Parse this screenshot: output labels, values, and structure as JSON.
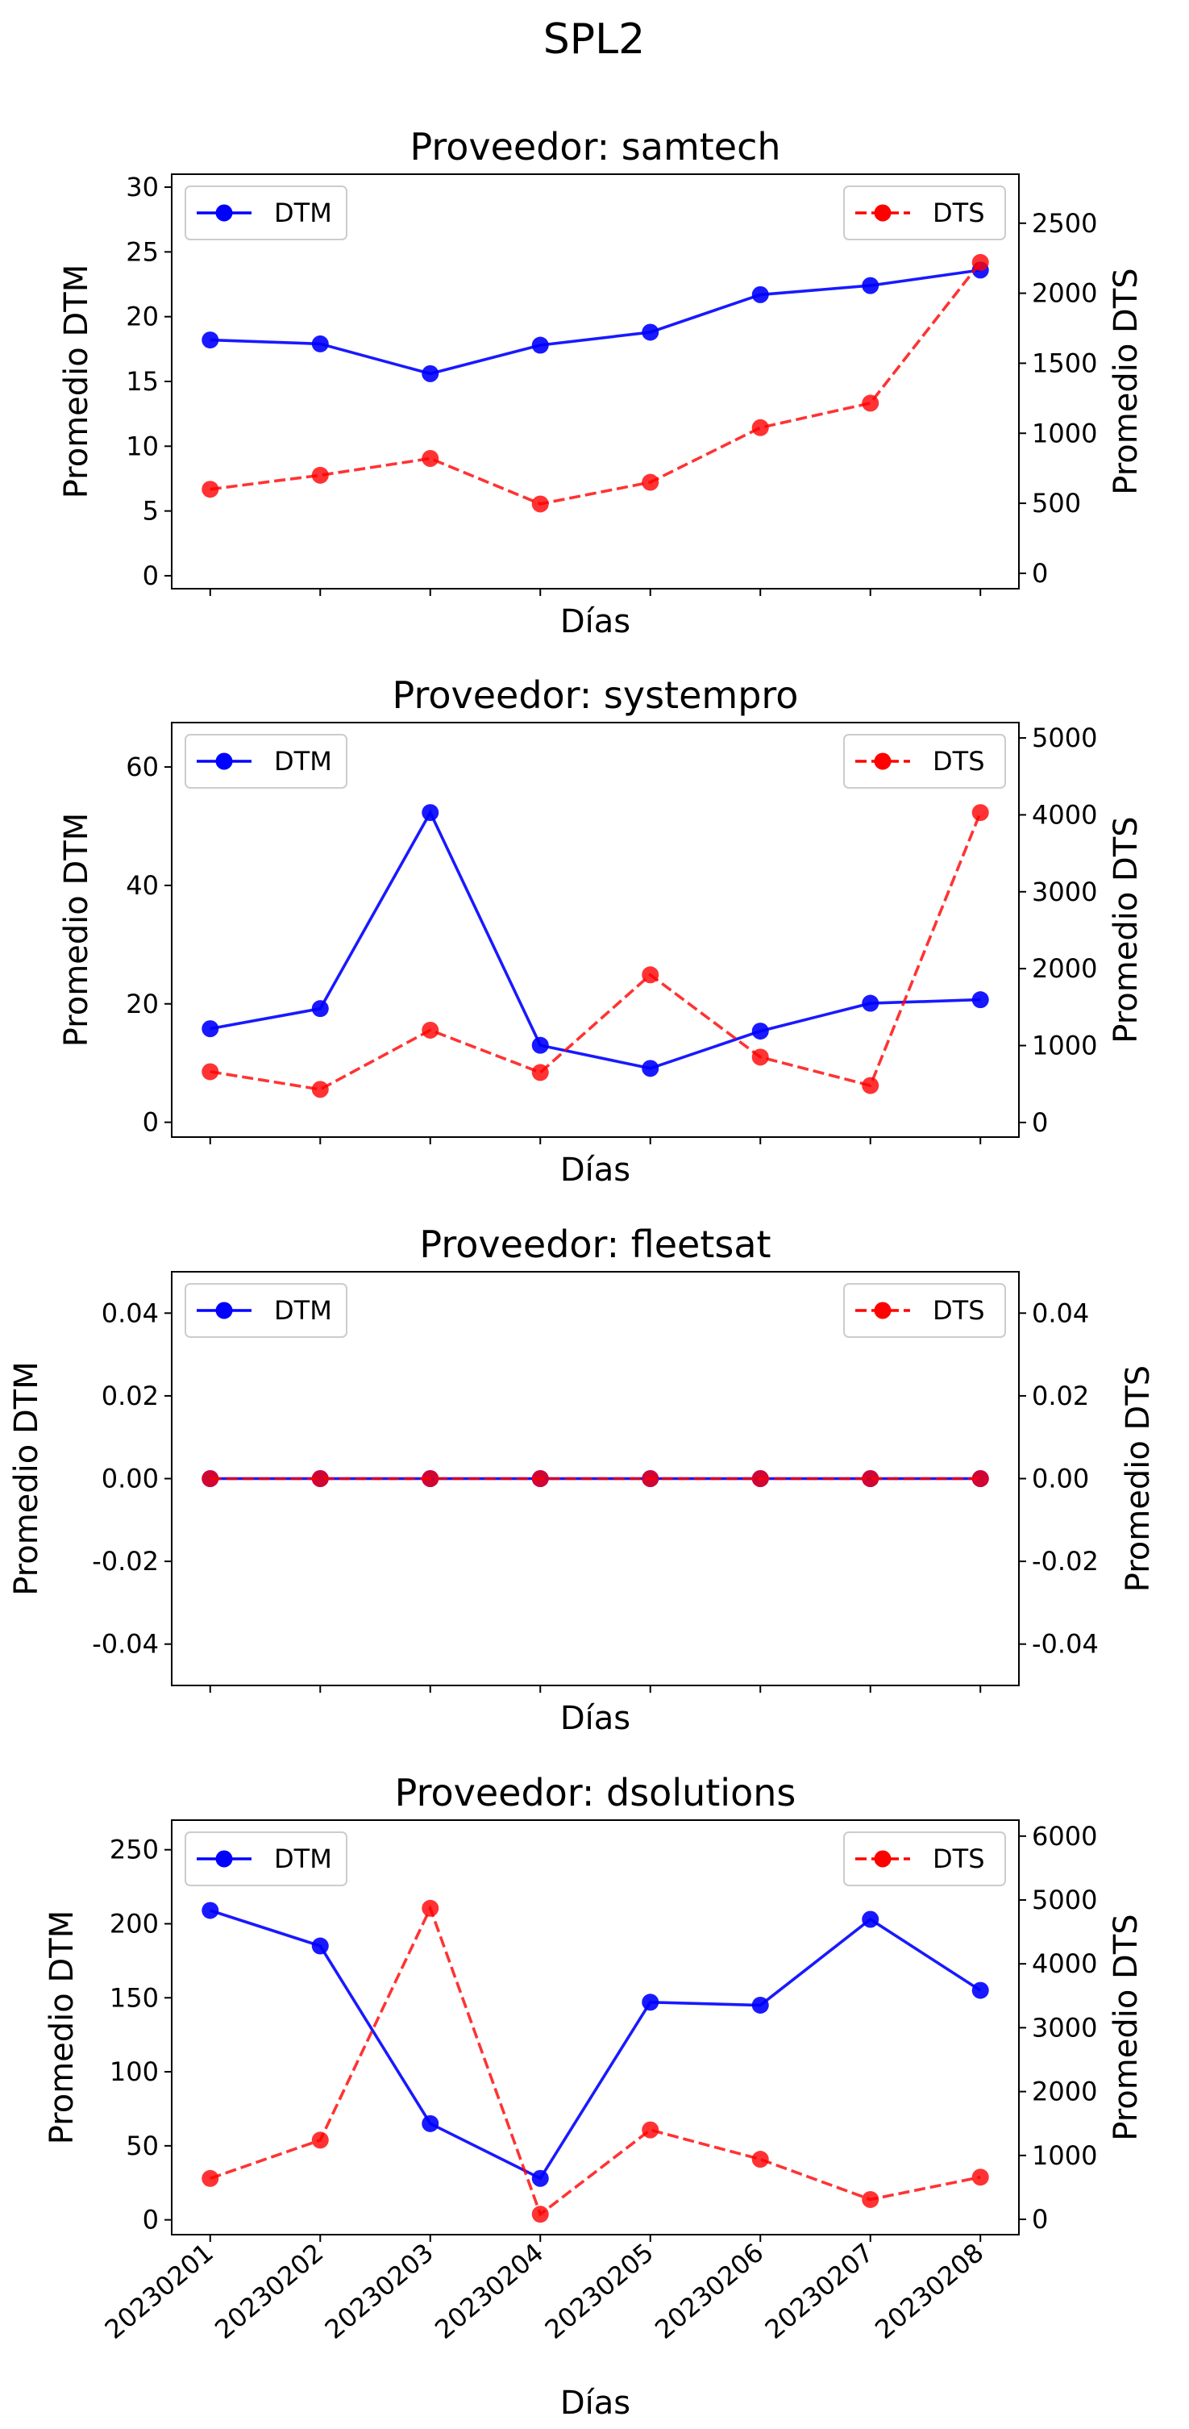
{
  "figure_title": "SPL2",
  "chart_data": [
    {
      "type": "line",
      "title": "Proveedor: samtech",
      "xlabel": "Días",
      "ylabel_left": "Promedio DTM",
      "ylabel_right": "Promedio DTS",
      "categories": [
        "20230201",
        "20230202",
        "20230203",
        "20230204",
        "20230205",
        "20230206",
        "20230207",
        "20230208"
      ],
      "show_xticklabels": false,
      "ylim_left": [
        -1.0,
        31.0
      ],
      "yticks_left": [
        0,
        5,
        10,
        15,
        20,
        25,
        30
      ],
      "ylim_right": [
        -110,
        2850
      ],
      "yticks_right": [
        0,
        500,
        1000,
        1500,
        2000,
        2500
      ],
      "series": [
        {
          "name": "DTM",
          "axis": "left",
          "color": "#0000ff",
          "style": "solid",
          "values": [
            18.2,
            17.9,
            15.6,
            17.8,
            18.8,
            21.7,
            22.4,
            23.6
          ]
        },
        {
          "name": "DTS",
          "axis": "right",
          "color": "#ff0000",
          "style": "dashed",
          "values": [
            600,
            700,
            820,
            495,
            650,
            1040,
            1215,
            2220
          ]
        }
      ],
      "legend_left_position": "upper left",
      "legend_right_position": "upper right",
      "grid": false
    },
    {
      "type": "line",
      "title": "Proveedor: systempro",
      "xlabel": "Días",
      "ylabel_left": "Promedio DTM",
      "ylabel_right": "Promedio DTS",
      "categories": [
        "20230201",
        "20230202",
        "20230203",
        "20230204",
        "20230205",
        "20230206",
        "20230207",
        "20230208"
      ],
      "show_xticklabels": false,
      "ylim_left": [
        -2.5,
        67.5
      ],
      "yticks_left": [
        0,
        20,
        40,
        60
      ],
      "ylim_right": [
        -190,
        5200
      ],
      "yticks_right": [
        0,
        1000,
        2000,
        3000,
        4000,
        5000
      ],
      "series": [
        {
          "name": "DTM",
          "axis": "left",
          "color": "#0000ff",
          "style": "solid",
          "values": [
            15.8,
            19.2,
            52.3,
            13.0,
            9.1,
            15.4,
            20.1,
            20.7
          ]
        },
        {
          "name": "DTS",
          "axis": "right",
          "color": "#ff0000",
          "style": "dashed",
          "values": [
            660,
            430,
            1200,
            650,
            1920,
            850,
            480,
            4030
          ]
        }
      ],
      "legend_left_position": "upper left",
      "legend_right_position": "upper right",
      "grid": false
    },
    {
      "type": "line",
      "title": "Proveedor: fleetsat",
      "xlabel": "Días",
      "ylabel_left": "Promedio DTM",
      "ylabel_right": "Promedio DTS",
      "categories": [
        "20230201",
        "20230202",
        "20230203",
        "20230204",
        "20230205",
        "20230206",
        "20230207",
        "20230208"
      ],
      "show_xticklabels": false,
      "ylim_left": [
        -0.05,
        0.05
      ],
      "yticks_left": [
        "0.04",
        "0.02",
        "0.00",
        "-0.02",
        "-0.04"
      ],
      "ylim_right": [
        -0.05,
        0.05
      ],
      "yticks_right": [
        "0.04",
        "0.02",
        "0.00",
        "-0.02",
        "-0.04"
      ],
      "series": [
        {
          "name": "DTM",
          "axis": "left",
          "color": "#0000ff",
          "style": "solid",
          "values": [
            0,
            0,
            0,
            0,
            0,
            0,
            0,
            0
          ]
        },
        {
          "name": "DTS",
          "axis": "right",
          "color": "#ff0000",
          "style": "dashed",
          "values": [
            0,
            0,
            0,
            0,
            0,
            0,
            0,
            0
          ]
        }
      ],
      "legend_left_position": "upper left",
      "legend_right_position": "upper right",
      "grid": false
    },
    {
      "type": "line",
      "title": "Proveedor: dsolutions",
      "xlabel": "Días",
      "ylabel_left": "Promedio DTM",
      "ylabel_right": "Promedio DTS",
      "categories": [
        "20230201",
        "20230202",
        "20230203",
        "20230204",
        "20230205",
        "20230206",
        "20230207",
        "20230208"
      ],
      "show_xticklabels": true,
      "ylim_left": [
        -10,
        270
      ],
      "yticks_left": [
        0,
        50,
        100,
        150,
        200,
        250
      ],
      "ylim_right": [
        -240,
        6250
      ],
      "yticks_right": [
        0,
        1000,
        2000,
        3000,
        4000,
        5000,
        6000
      ],
      "series": [
        {
          "name": "DTM",
          "axis": "left",
          "color": "#0000ff",
          "style": "solid",
          "values": [
            209,
            185,
            65,
            28,
            147,
            145,
            203,
            155
          ]
        },
        {
          "name": "DTS",
          "axis": "right",
          "color": "#ff0000",
          "style": "dashed",
          "values": [
            640,
            1240,
            4870,
            80,
            1400,
            940,
            310,
            660
          ]
        }
      ],
      "legend_left_position": "upper left",
      "legend_right_position": "upper right",
      "grid": false
    }
  ]
}
